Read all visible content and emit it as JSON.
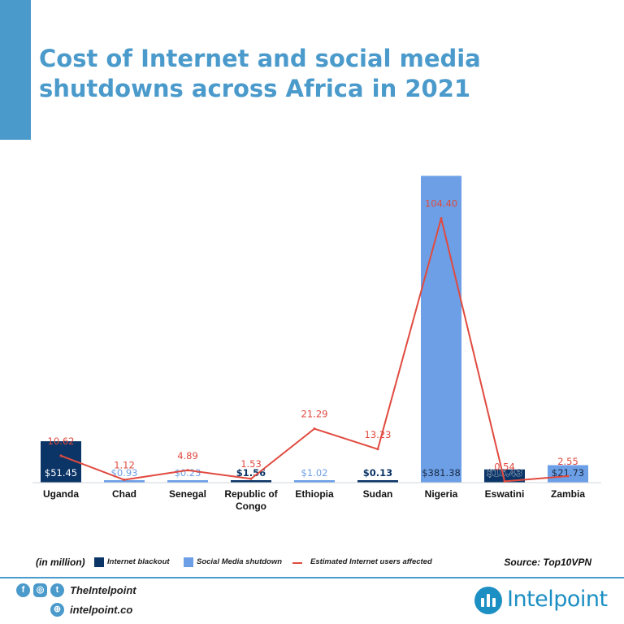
{
  "title": "Cost of Internet and social media shutdowns across Africa in 2021",
  "colors": {
    "accent": "#4a9acb",
    "blackout": "#0c3567",
    "social": "#6c9fe6",
    "users_line": "#e04a3f"
  },
  "chart_data": {
    "type": "bar",
    "categories": [
      "Uganda",
      "Chad",
      "Senegal",
      "Republic of Congo",
      "Ethiopia",
      "Sudan",
      "Nigeria",
      "Eswatini",
      "Zambia"
    ],
    "category_labels": [
      [
        "Uganda"
      ],
      [
        "Chad"
      ],
      [
        "Senegal"
      ],
      [
        "Republic of",
        "Congo"
      ],
      [
        "Ethiopia"
      ],
      [
        "Sudan"
      ],
      [
        "Nigeria"
      ],
      [
        "Eswatini"
      ],
      [
        "Zambia"
      ]
    ],
    "series": [
      {
        "name": "Internet blackout",
        "kind": "bar",
        "color": "#0c3567",
        "values": [
          51.45,
          null,
          null,
          1.56,
          null,
          0.13,
          null,
          16.43,
          null
        ]
      },
      {
        "name": "Social Media shutdown",
        "kind": "bar",
        "color": "#6c9fe6",
        "values": [
          null,
          0.93,
          0.23,
          null,
          1.02,
          null,
          381.38,
          null,
          21.73
        ]
      },
      {
        "name": "Estimated Internet users affected",
        "kind": "line",
        "color": "#e04a3f",
        "values": [
          10.62,
          1.12,
          4.89,
          1.53,
          21.29,
          13.23,
          104.4,
          0.54,
          2.55
        ]
      }
    ],
    "bar_labels": [
      "$51.45",
      "$0.93",
      "$0.23",
      "$1.56",
      "$1.02",
      "$0.13",
      "$381.38",
      "$16.43",
      "$21.73"
    ],
    "line_labels": [
      "10.62",
      "1.12",
      "4.89",
      "1.53",
      "21.29",
      "13.23",
      "104.40",
      "0.54",
      "2.55"
    ],
    "bar_ylim": [
      0,
      400
    ],
    "line_ylim": [
      0,
      120
    ],
    "unit_label": "(in million)",
    "source": "Source: Top10VPN",
    "grid": false,
    "legend_position": "bottom"
  },
  "legend": {
    "unit": "(in million)",
    "blackout": "Internet blackout",
    "social": "Social Media shutdown",
    "users": "Estimated Internet users affected",
    "source": "Source: Top10VPN"
  },
  "footer": {
    "social_handle": "TheIntelpoint",
    "website": "intelpoint.co",
    "brand": "Intelpoint",
    "icons": [
      "facebook-icon",
      "instagram-icon",
      "twitter-icon",
      "globe-icon"
    ]
  }
}
